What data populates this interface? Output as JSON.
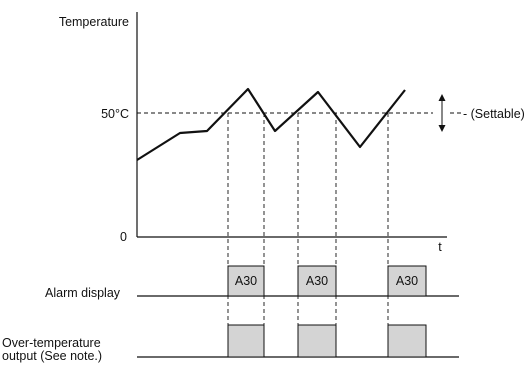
{
  "chart": {
    "y_label": "Temperature",
    "y_tick_setpoint": "50°C",
    "y_tick_zero": "0",
    "x_label": "t",
    "settable_label": "- (Settable)"
  },
  "alarm_row": {
    "label": "Alarm display",
    "codes": [
      "A30",
      "A30",
      "A30"
    ]
  },
  "output_row": {
    "label_line1": "Over-temperature",
    "label_line2": "output (See note.)"
  },
  "colors": {
    "line": "#111111",
    "pulse_fill": "#d4d4d4"
  }
}
